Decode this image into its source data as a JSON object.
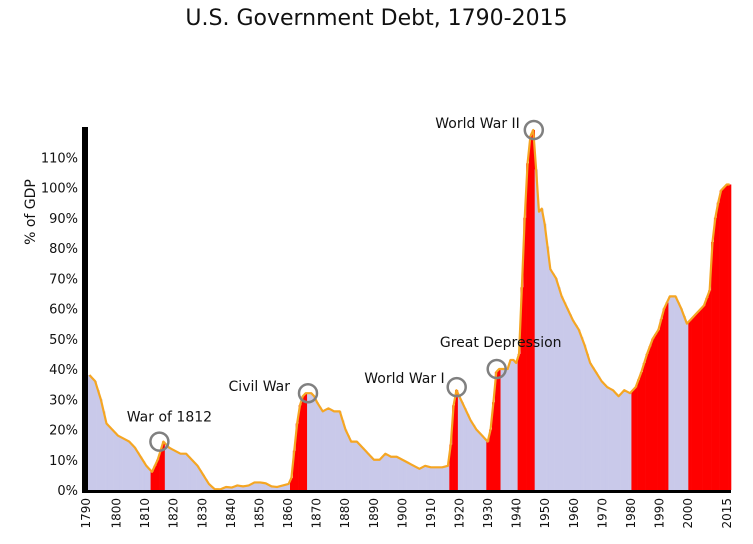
{
  "chart_data": {
    "type": "bar",
    "title": "U.S. Government Debt, 1790-2015",
    "xlabel": "",
    "ylabel": "% of GDP",
    "xlim": [
      1790,
      2015
    ],
    "ylim": [
      0,
      120
    ],
    "y_ticks": [
      0,
      10,
      20,
      30,
      40,
      50,
      60,
      70,
      80,
      90,
      100,
      110
    ],
    "y_tick_labels": [
      "0%",
      "10%",
      "20%",
      "30%",
      "40%",
      "50%",
      "60%",
      "70%",
      "80%",
      "90%",
      "100%",
      "110%"
    ],
    "x_ticks": [
      1790,
      1800,
      1810,
      1820,
      1830,
      1840,
      1850,
      1860,
      1870,
      1880,
      1890,
      1900,
      1910,
      1920,
      1930,
      1940,
      1950,
      1960,
      1970,
      1980,
      1990,
      2000,
      2015
    ],
    "x_tick_labels": [
      "1790",
      "1800",
      "1810",
      "1820",
      "1830",
      "1840",
      "1850",
      "1860",
      "1870",
      "1880",
      "1890",
      "1900",
      "1910",
      "1920",
      "1930",
      "1940",
      "1950",
      "1960",
      "1970",
      "1980",
      "1990",
      "2000",
      "2015"
    ],
    "debt_points": [
      [
        1790,
        38
      ],
      [
        1792,
        36
      ],
      [
        1794,
        30
      ],
      [
        1796,
        22
      ],
      [
        1798,
        20
      ],
      [
        1800,
        18
      ],
      [
        1802,
        17
      ],
      [
        1804,
        16
      ],
      [
        1806,
        14
      ],
      [
        1808,
        11
      ],
      [
        1810,
        8
      ],
      [
        1812,
        6
      ],
      [
        1814,
        10
      ],
      [
        1816,
        16
      ],
      [
        1818,
        14
      ],
      [
        1820,
        13
      ],
      [
        1822,
        12
      ],
      [
        1824,
        12
      ],
      [
        1826,
        10
      ],
      [
        1828,
        8
      ],
      [
        1830,
        5
      ],
      [
        1832,
        2
      ],
      [
        1834,
        0.3
      ],
      [
        1836,
        0.2
      ],
      [
        1838,
        1
      ],
      [
        1840,
        0.8
      ],
      [
        1842,
        1.5
      ],
      [
        1844,
        1.2
      ],
      [
        1846,
        1.5
      ],
      [
        1848,
        2.5
      ],
      [
        1850,
        2.5
      ],
      [
        1852,
        2.2
      ],
      [
        1854,
        1.2
      ],
      [
        1856,
        1
      ],
      [
        1858,
        1.5
      ],
      [
        1860,
        2
      ],
      [
        1861,
        4
      ],
      [
        1862,
        13
      ],
      [
        1863,
        22
      ],
      [
        1864,
        28
      ],
      [
        1865,
        31
      ],
      [
        1866,
        32
      ],
      [
        1867,
        32
      ],
      [
        1868,
        32
      ],
      [
        1869,
        31
      ],
      [
        1870,
        29
      ],
      [
        1872,
        26
      ],
      [
        1874,
        27
      ],
      [
        1876,
        26
      ],
      [
        1878,
        26
      ],
      [
        1880,
        20
      ],
      [
        1882,
        16
      ],
      [
        1884,
        16
      ],
      [
        1886,
        14
      ],
      [
        1888,
        12
      ],
      [
        1890,
        10
      ],
      [
        1892,
        10
      ],
      [
        1894,
        12
      ],
      [
        1896,
        11
      ],
      [
        1898,
        11
      ],
      [
        1900,
        10
      ],
      [
        1902,
        9
      ],
      [
        1904,
        8
      ],
      [
        1906,
        7
      ],
      [
        1908,
        8
      ],
      [
        1910,
        7.5
      ],
      [
        1912,
        7.5
      ],
      [
        1914,
        7.5
      ],
      [
        1916,
        8
      ],
      [
        1917,
        15
      ],
      [
        1918,
        28
      ],
      [
        1919,
        33
      ],
      [
        1920,
        31
      ],
      [
        1922,
        27
      ],
      [
        1924,
        23
      ],
      [
        1926,
        20
      ],
      [
        1928,
        18
      ],
      [
        1930,
        16
      ],
      [
        1931,
        20
      ],
      [
        1932,
        29
      ],
      [
        1933,
        39
      ],
      [
        1934,
        40
      ],
      [
        1935,
        40
      ],
      [
        1936,
        40
      ],
      [
        1937,
        40
      ],
      [
        1938,
        43
      ],
      [
        1939,
        43
      ],
      [
        1940,
        42
      ],
      [
        1941,
        45
      ],
      [
        1942,
        67
      ],
      [
        1943,
        90
      ],
      [
        1944,
        108
      ],
      [
        1945,
        117
      ],
      [
        1946,
        119
      ],
      [
        1947,
        106
      ],
      [
        1948,
        92
      ],
      [
        1949,
        93
      ],
      [
        1950,
        88
      ],
      [
        1952,
        73
      ],
      [
        1954,
        70
      ],
      [
        1956,
        64
      ],
      [
        1958,
        60
      ],
      [
        1960,
        56
      ],
      [
        1962,
        53
      ],
      [
        1964,
        48
      ],
      [
        1966,
        42
      ],
      [
        1968,
        39
      ],
      [
        1970,
        36
      ],
      [
        1972,
        34
      ],
      [
        1974,
        33
      ],
      [
        1976,
        31
      ],
      [
        1978,
        33
      ],
      [
        1980,
        32
      ],
      [
        1982,
        34
      ],
      [
        1984,
        39
      ],
      [
        1986,
        45
      ],
      [
        1988,
        50
      ],
      [
        1990,
        53
      ],
      [
        1992,
        60
      ],
      [
        1994,
        64
      ],
      [
        1996,
        64
      ],
      [
        1998,
        60
      ],
      [
        2000,
        55
      ],
      [
        2002,
        57
      ],
      [
        2004,
        59
      ],
      [
        2006,
        61
      ],
      [
        2008,
        66
      ],
      [
        2009,
        82
      ],
      [
        2010,
        90
      ],
      [
        2011,
        95
      ],
      [
        2012,
        99
      ],
      [
        2013,
        100
      ],
      [
        2014,
        101
      ],
      [
        2015,
        101
      ]
    ],
    "war_periods": [
      [
        1812,
        1816
      ],
      [
        1861,
        1866
      ],
      [
        1917,
        1919
      ],
      [
        1930,
        1934
      ],
      [
        1941,
        1946
      ],
      [
        1981,
        1993
      ],
      [
        2001,
        2015
      ]
    ],
    "annotations": [
      {
        "label": "War of 1812",
        "x": 1815,
        "y": 16
      },
      {
        "label": "Civil War",
        "x": 1867,
        "y": 32
      },
      {
        "label": "World War I",
        "x": 1919,
        "y": 34
      },
      {
        "label": "Great Depression",
        "x": 1933,
        "y": 40
      },
      {
        "label": "World War II",
        "x": 1946,
        "y": 119
      }
    ],
    "colors": {
      "peace": "#c9c9ea",
      "war": "#ff0000",
      "outline": "#f5a623",
      "axis": "#000000"
    },
    "grid": false,
    "legend": "none"
  }
}
